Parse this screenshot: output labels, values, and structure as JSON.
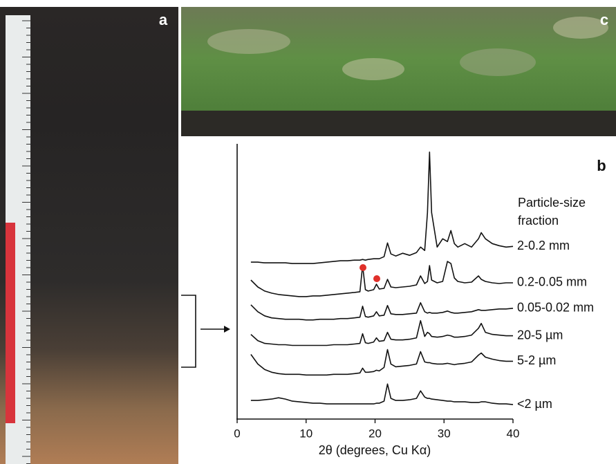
{
  "panel_labels": [
    "a",
    "b",
    "c"
  ],
  "chart_data": {
    "type": "line",
    "xlabel": "2θ (degrees, Cu Kα)",
    "legend_title": "Particle-size fraction",
    "xlim": [
      0,
      40
    ],
    "xticks": [
      0,
      10,
      20,
      30,
      40
    ],
    "ylim": [
      0,
      400
    ],
    "x": [
      2,
      3,
      4,
      5,
      6,
      7,
      8,
      9,
      10,
      11,
      12,
      13,
      14,
      15,
      16,
      17,
      17.8,
      18.2,
      18.6,
      19,
      19.8,
      20.2,
      20.6,
      21.3,
      21.8,
      22.3,
      23,
      24,
      25,
      26,
      26.6,
      27.2,
      27.6,
      27.9,
      28.2,
      29,
      29.8,
      30.5,
      31,
      31.5,
      32,
      33,
      34,
      35,
      35.4,
      36,
      37,
      38,
      39,
      40
    ],
    "series": [
      {
        "name": "2-0.2 mm",
        "color": "#111111",
        "values": [
          228,
          228,
          227,
          227,
          227,
          227,
          226,
          226,
          226,
          226,
          227,
          228,
          229,
          230,
          230,
          231,
          231,
          232,
          231,
          232,
          233,
          233,
          233,
          236,
          256,
          240,
          237,
          241,
          238,
          242,
          250,
          245,
          300,
          388,
          300,
          250,
          262,
          258,
          274,
          255,
          250,
          255,
          250,
          262,
          271,
          262,
          255,
          252,
          250,
          251
        ]
      },
      {
        "name": "0.2-0.05 mm",
        "color": "#111111",
        "values": [
          202,
          192,
          186,
          183,
          181,
          180,
          179,
          178,
          178,
          179,
          179,
          180,
          181,
          182,
          183,
          184,
          185,
          223,
          188,
          186,
          188,
          196,
          189,
          190,
          203,
          192,
          191,
          192,
          193,
          195,
          208,
          197,
          200,
          223,
          202,
          198,
          200,
          229,
          226,
          205,
          200,
          198,
          199,
          208,
          203,
          200,
          198,
          197,
          198,
          198
        ]
      },
      {
        "name": "0.05-0.02 mm",
        "color": "#111111",
        "values": [
          166,
          156,
          150,
          147,
          146,
          145,
          145,
          145,
          144,
          144,
          145,
          145,
          145,
          146,
          146,
          147,
          148,
          164,
          149,
          148,
          150,
          156,
          150,
          151,
          165,
          153,
          152,
          152,
          153,
          154,
          169,
          156,
          154,
          155,
          154,
          154,
          155,
          157,
          155,
          154,
          154,
          155,
          156,
          159,
          158,
          158,
          159,
          160,
          160,
          161
        ]
      },
      {
        "name": "20-5 µm",
        "color": "#111111",
        "values": [
          123,
          114,
          110,
          109,
          108,
          108,
          107,
          107,
          107,
          107,
          107,
          107,
          108,
          108,
          108,
          109,
          110,
          124,
          111,
          110,
          112,
          118,
          113,
          114,
          126,
          116,
          115,
          115,
          116,
          118,
          143,
          120,
          126,
          124,
          120,
          119,
          120,
          122,
          121,
          119,
          119,
          120,
          122,
          132,
          139,
          126,
          123,
          122,
          121,
          121
        ]
      },
      {
        "name": "5-2 µm",
        "color": "#111111",
        "values": [
          94,
          80,
          72,
          68,
          66,
          65,
          65,
          65,
          64,
          64,
          64,
          64,
          65,
          65,
          65,
          66,
          67,
          74,
          68,
          68,
          69,
          71,
          70,
          75,
          101,
          80,
          76,
          77,
          78,
          80,
          98,
          83,
          82,
          82,
          81,
          80,
          80,
          81,
          80,
          79,
          80,
          81,
          83,
          93,
          96,
          90,
          87,
          85,
          84,
          84
        ]
      },
      {
        "name": "<2 µm",
        "color": "#111111",
        "values": [
          27,
          27,
          28,
          29,
          31,
          29,
          26,
          25,
          24,
          23,
          23,
          22,
          22,
          22,
          22,
          22,
          22,
          22,
          22,
          22,
          22,
          23,
          23,
          26,
          51,
          30,
          27,
          27,
          28,
          30,
          41,
          32,
          30,
          30,
          29,
          28,
          27,
          26,
          26,
          25,
          25,
          25,
          24,
          24,
          25,
          25,
          23,
          22,
          22,
          21
        ]
      }
    ]
  }
}
